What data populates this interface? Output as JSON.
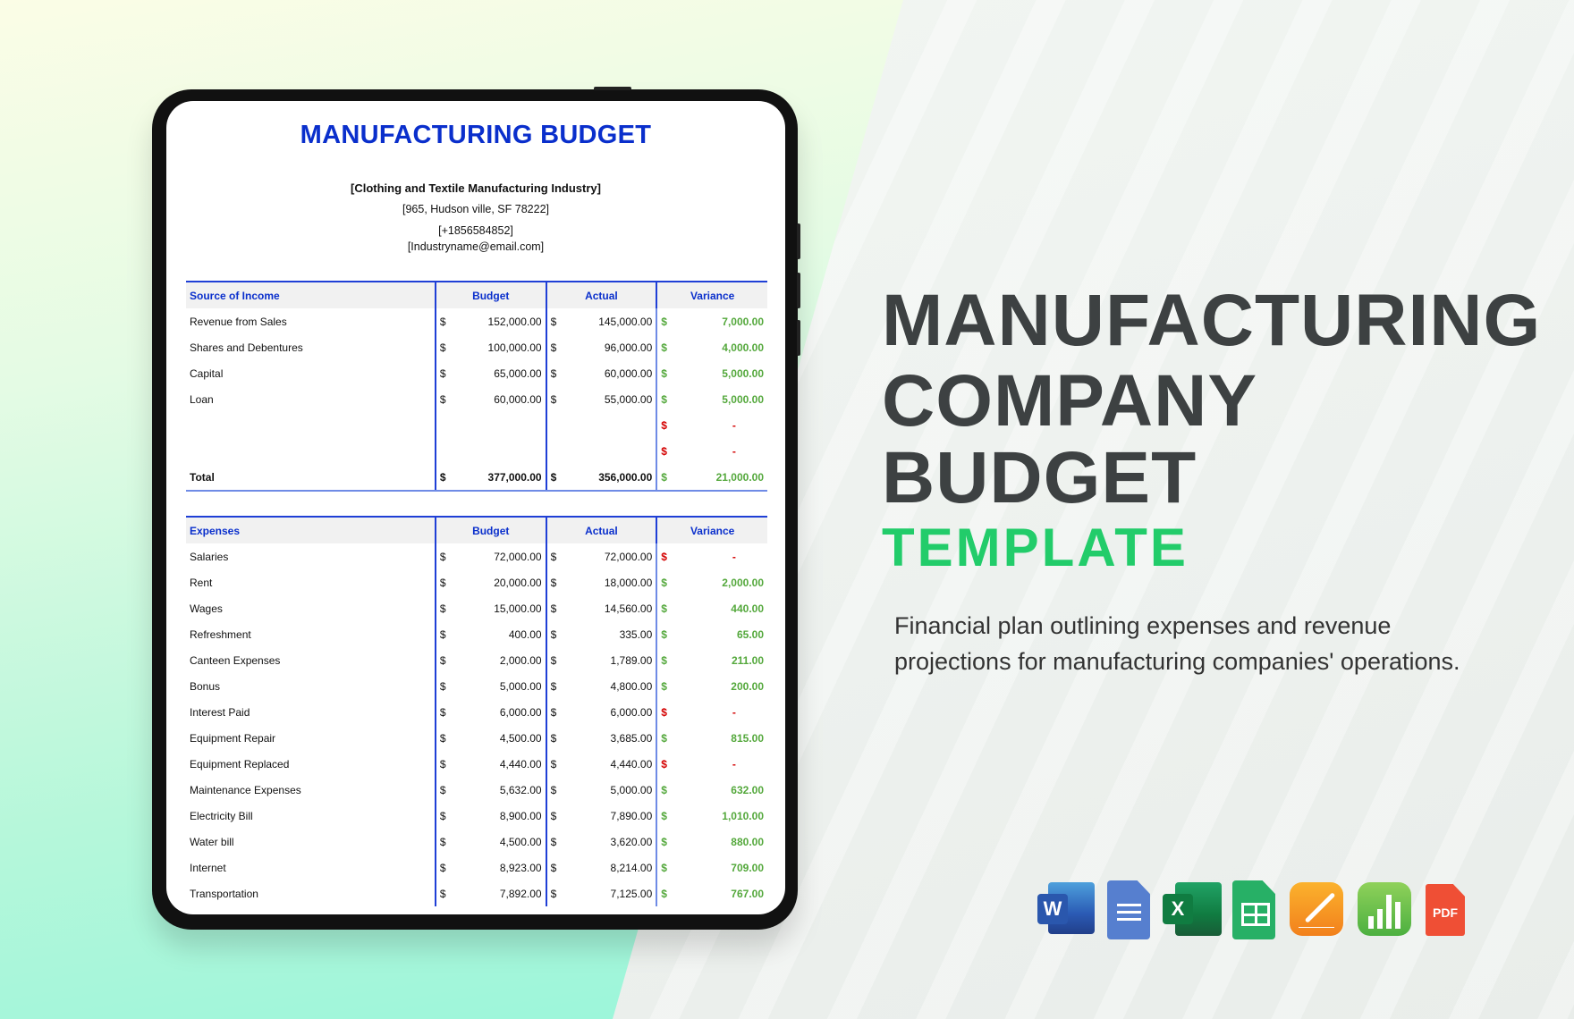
{
  "document": {
    "title": "MANUFACTURING BUDGET",
    "company": "[Clothing and Textile Manufacturing Industry]",
    "address": "[965, Hudson ville, SF 78222]",
    "phone": "[+1856584852]",
    "email": "[Industryname@email.com]"
  },
  "income": {
    "headers": [
      "Source of Income",
      "Budget",
      "Actual",
      "Variance"
    ],
    "rows": [
      {
        "label": "Revenue from Sales",
        "budget": "152,000.00",
        "actual": "145,000.00",
        "variance": "7,000.00",
        "status": "green"
      },
      {
        "label": "Shares and Debentures",
        "budget": "100,000.00",
        "actual": "96,000.00",
        "variance": "4,000.00",
        "status": "green"
      },
      {
        "label": "Capital",
        "budget": "65,000.00",
        "actual": "60,000.00",
        "variance": "5,000.00",
        "status": "green"
      },
      {
        "label": "Loan",
        "budget": "60,000.00",
        "actual": "55,000.00",
        "variance": "5,000.00",
        "status": "green"
      },
      {
        "label": "",
        "budget": "",
        "actual": "",
        "variance": "-",
        "status": "red"
      },
      {
        "label": "",
        "budget": "",
        "actual": "",
        "variance": "-",
        "status": "red"
      }
    ],
    "total": {
      "label": "Total",
      "budget": "377,000.00",
      "actual": "356,000.00",
      "variance": "21,000.00",
      "status": "green"
    }
  },
  "expenses": {
    "headers": [
      "Expenses",
      "Budget",
      "Actual",
      "Variance"
    ],
    "rows": [
      {
        "label": "Salaries",
        "budget": "72,000.00",
        "actual": "72,000.00",
        "variance": "-",
        "status": "red"
      },
      {
        "label": "Rent",
        "budget": "20,000.00",
        "actual": "18,000.00",
        "variance": "2,000.00",
        "status": "green"
      },
      {
        "label": "Wages",
        "budget": "15,000.00",
        "actual": "14,560.00",
        "variance": "440.00",
        "status": "green"
      },
      {
        "label": "Refreshment",
        "budget": "400.00",
        "actual": "335.00",
        "variance": "65.00",
        "status": "green"
      },
      {
        "label": "Canteen Expenses",
        "budget": "2,000.00",
        "actual": "1,789.00",
        "variance": "211.00",
        "status": "green"
      },
      {
        "label": "Bonus",
        "budget": "5,000.00",
        "actual": "4,800.00",
        "variance": "200.00",
        "status": "green"
      },
      {
        "label": "Interest Paid",
        "budget": "6,000.00",
        "actual": "6,000.00",
        "variance": "-",
        "status": "red"
      },
      {
        "label": "Equipment Repair",
        "budget": "4,500.00",
        "actual": "3,685.00",
        "variance": "815.00",
        "status": "green"
      },
      {
        "label": "Equipment Replaced",
        "budget": "4,440.00",
        "actual": "4,440.00",
        "variance": "-",
        "status": "red"
      },
      {
        "label": "Maintenance Expenses",
        "budget": "5,632.00",
        "actual": "5,000.00",
        "variance": "632.00",
        "status": "green"
      },
      {
        "label": "Electricity Bill",
        "budget": "8,900.00",
        "actual": "7,890.00",
        "variance": "1,010.00",
        "status": "green"
      },
      {
        "label": "Water bill",
        "budget": "4,500.00",
        "actual": "3,620.00",
        "variance": "880.00",
        "status": "green"
      },
      {
        "label": "Internet",
        "budget": "8,923.00",
        "actual": "8,214.00",
        "variance": "709.00",
        "status": "green"
      },
      {
        "label": "Transportation",
        "budget": "7,892.00",
        "actual": "7,125.00",
        "variance": "767.00",
        "status": "green"
      }
    ]
  },
  "currency_symbol": "$",
  "hero": {
    "line1": "MANUFACTURING",
    "line2": "COMPANY",
    "line3": "BUDGET",
    "accent": "TEMPLATE",
    "description": "Financial plan outlining expenses and revenue projections for manufacturing companies' operations."
  },
  "formats": [
    {
      "icon": "word-icon",
      "letter": "W",
      "color": "#2b5bb5"
    },
    {
      "icon": "google-docs-icon",
      "color": "#4f7fd0"
    },
    {
      "icon": "excel-icon",
      "letter": "X",
      "color": "#1d7a45"
    },
    {
      "icon": "google-sheets-icon",
      "color": "#23b062"
    },
    {
      "icon": "pages-icon",
      "color": "#f79a1e"
    },
    {
      "icon": "numbers-icon",
      "color": "#5cbd45"
    },
    {
      "icon": "pdf-icon",
      "letter": "PDF",
      "color": "#ef4f35"
    }
  ],
  "colors": {
    "title_blue": "#0a2fcc",
    "positive": "#54a83c",
    "negative": "#d40000",
    "accent_green": "#22cc6a"
  }
}
